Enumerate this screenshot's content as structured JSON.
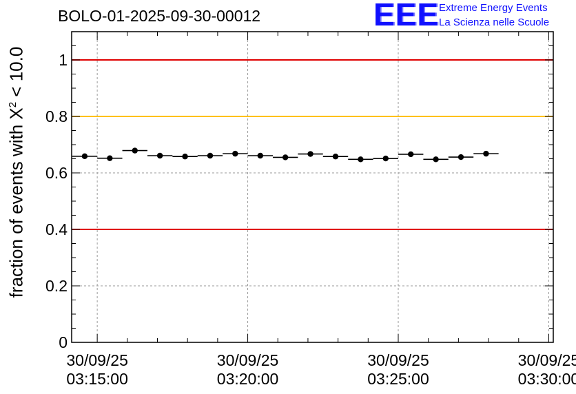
{
  "header": {
    "run_id": "BOLO-01-2025-09-30-00012"
  },
  "logo": {
    "mark": "EEE",
    "line1": "Extreme Energy Events",
    "line2": "La Scienza nelle Scuole",
    "color": "#1010ff"
  },
  "chart_data": {
    "type": "scatter",
    "title": "BOLO-01-2025-09-30-00012",
    "ylabel_prefix": "fraction of events with ",
    "ylabel_symbol": "Χ",
    "ylabel_exponent": "2",
    "ylabel_suffix": " < 10.0",
    "xlabel": "",
    "ylim": [
      0,
      1.1
    ],
    "xlim_minutes": [
      -0.85,
      15.15
    ],
    "grid": true,
    "y_ticks": [
      {
        "value": 0,
        "label": "0"
      },
      {
        "value": 0.2,
        "label": "0.2"
      },
      {
        "value": 0.4,
        "label": "0.4"
      },
      {
        "value": 0.6,
        "label": "0.6"
      },
      {
        "value": 0.8,
        "label": "0.8"
      },
      {
        "value": 1,
        "label": "1"
      }
    ],
    "x_ticks": [
      {
        "minutes": 0,
        "date": "30/09/25",
        "time": "03:15:00"
      },
      {
        "minutes": 5,
        "date": "30/09/25",
        "time": "03:20:00"
      },
      {
        "minutes": 10,
        "date": "30/09/25",
        "time": "03:25:00"
      },
      {
        "minutes": 15,
        "date": "30/09/25",
        "time": "03:30:00"
      }
    ],
    "reference_lines": [
      {
        "value": 1.0,
        "color": "#e00000"
      },
      {
        "value": 0.8,
        "color": "#ffc000"
      },
      {
        "value": 0.4,
        "color": "#e00000"
      }
    ],
    "bin_width_minutes": 0.833,
    "points": [
      {
        "minutes": -0.417,
        "y": 0.659
      },
      {
        "minutes": 0.417,
        "y": 0.652
      },
      {
        "minutes": 1.25,
        "y": 0.679
      },
      {
        "minutes": 2.083,
        "y": 0.661
      },
      {
        "minutes": 2.917,
        "y": 0.658
      },
      {
        "minutes": 3.75,
        "y": 0.661
      },
      {
        "minutes": 4.583,
        "y": 0.668
      },
      {
        "minutes": 5.417,
        "y": 0.661
      },
      {
        "minutes": 6.25,
        "y": 0.655
      },
      {
        "minutes": 7.083,
        "y": 0.667
      },
      {
        "minutes": 7.917,
        "y": 0.658
      },
      {
        "minutes": 8.75,
        "y": 0.648
      },
      {
        "minutes": 9.583,
        "y": 0.651
      },
      {
        "minutes": 10.417,
        "y": 0.666
      },
      {
        "minutes": 11.25,
        "y": 0.648
      },
      {
        "minutes": 12.083,
        "y": 0.656
      },
      {
        "minutes": 12.917,
        "y": 0.668
      }
    ]
  }
}
